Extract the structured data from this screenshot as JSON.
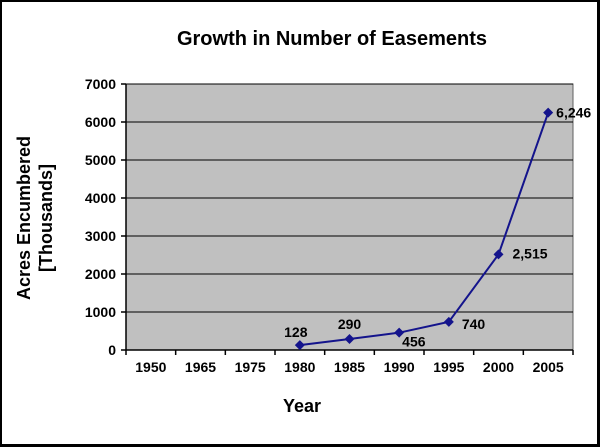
{
  "window": {
    "background": "#ffffff",
    "border_color": "#000000"
  },
  "chart_data": {
    "type": "line",
    "title": "Growth in Number of Easements",
    "xlabel": "Year",
    "ylabel": "Acres Encumbered [Thousands]",
    "ylabel_lines": [
      "Acres Encumbered",
      "[Thousands]"
    ],
    "categories": [
      "1950",
      "1965",
      "1975",
      "1980",
      "1985",
      "1990",
      "1995",
      "2000",
      "2005"
    ],
    "series": [
      {
        "name": "Acres Encumbered",
        "x": [
          "1980",
          "1985",
          "1990",
          "1995",
          "2000",
          "2005"
        ],
        "values": [
          128,
          290,
          456,
          740,
          2515,
          6246
        ],
        "point_labels": [
          "128",
          "290",
          "456",
          "740",
          "2,515",
          "6,246"
        ]
      }
    ],
    "ylim": [
      0,
      7000
    ],
    "ytick_step": 1000,
    "ytick_labels": [
      "0",
      "1000",
      "2000",
      "3000",
      "4000",
      "5000",
      "6000",
      "7000"
    ],
    "grid": true,
    "legend": "none",
    "marker": "diamond",
    "colors": {
      "plot_bg": "#c0c0c0",
      "plot_border": "#606060",
      "line": "#14148c",
      "grid": "#000000",
      "axis": "#000000",
      "text": "#000000"
    }
  }
}
